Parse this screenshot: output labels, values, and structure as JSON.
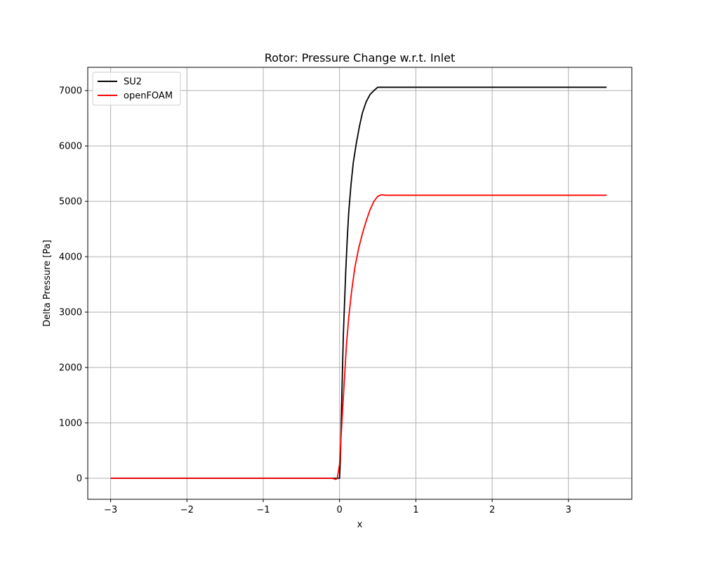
{
  "chart_data": {
    "type": "line",
    "title": "Rotor: Pressure Change w.r.t. Inlet",
    "xlabel": "x",
    "ylabel": "Delta Pressure [Pa]",
    "xlim": [
      -3.3,
      3.83
    ],
    "ylim": [
      -380,
      7420
    ],
    "x_ticks": [
      -3,
      -2,
      -1,
      0,
      1,
      2,
      3
    ],
    "x_tick_labels": [
      "−3",
      "−2",
      "−1",
      "0",
      "1",
      "2",
      "3"
    ],
    "y_ticks": [
      0,
      1000,
      2000,
      3000,
      4000,
      5000,
      6000,
      7000
    ],
    "y_tick_labels": [
      "0",
      "1000",
      "2000",
      "3000",
      "4000",
      "5000",
      "6000",
      "7000"
    ],
    "grid": true,
    "legend_position": "top-left",
    "series": [
      {
        "name": "SU2",
        "color": "#000000",
        "points": [
          [
            -3.0,
            0
          ],
          [
            -1.0,
            0
          ],
          [
            -0.05,
            0
          ],
          [
            0.0,
            0
          ],
          [
            0.01,
            300
          ],
          [
            0.03,
            1500
          ],
          [
            0.05,
            2600
          ],
          [
            0.08,
            3700
          ],
          [
            0.1,
            4300
          ],
          [
            0.12,
            4800
          ],
          [
            0.15,
            5300
          ],
          [
            0.18,
            5700
          ],
          [
            0.22,
            6050
          ],
          [
            0.26,
            6350
          ],
          [
            0.3,
            6600
          ],
          [
            0.35,
            6800
          ],
          [
            0.4,
            6930
          ],
          [
            0.45,
            7000
          ],
          [
            0.5,
            7060
          ],
          [
            1.0,
            7060
          ],
          [
            2.0,
            7060
          ],
          [
            3.5,
            7060
          ]
        ]
      },
      {
        "name": "openFOAM",
        "color": "#ff0000",
        "points": [
          [
            -3.0,
            0
          ],
          [
            -1.0,
            0
          ],
          [
            -0.1,
            0
          ],
          [
            -0.05,
            -20
          ],
          [
            -0.03,
            0
          ],
          [
            0.0,
            250
          ],
          [
            0.03,
            1000
          ],
          [
            0.06,
            1700
          ],
          [
            0.09,
            2400
          ],
          [
            0.12,
            2900
          ],
          [
            0.16,
            3400
          ],
          [
            0.2,
            3800
          ],
          [
            0.25,
            4150
          ],
          [
            0.3,
            4420
          ],
          [
            0.35,
            4650
          ],
          [
            0.4,
            4850
          ],
          [
            0.45,
            5000
          ],
          [
            0.5,
            5090
          ],
          [
            0.55,
            5120
          ],
          [
            0.6,
            5110
          ],
          [
            0.7,
            5110
          ],
          [
            1.0,
            5110
          ],
          [
            2.0,
            5110
          ],
          [
            3.5,
            5110
          ]
        ]
      }
    ]
  }
}
